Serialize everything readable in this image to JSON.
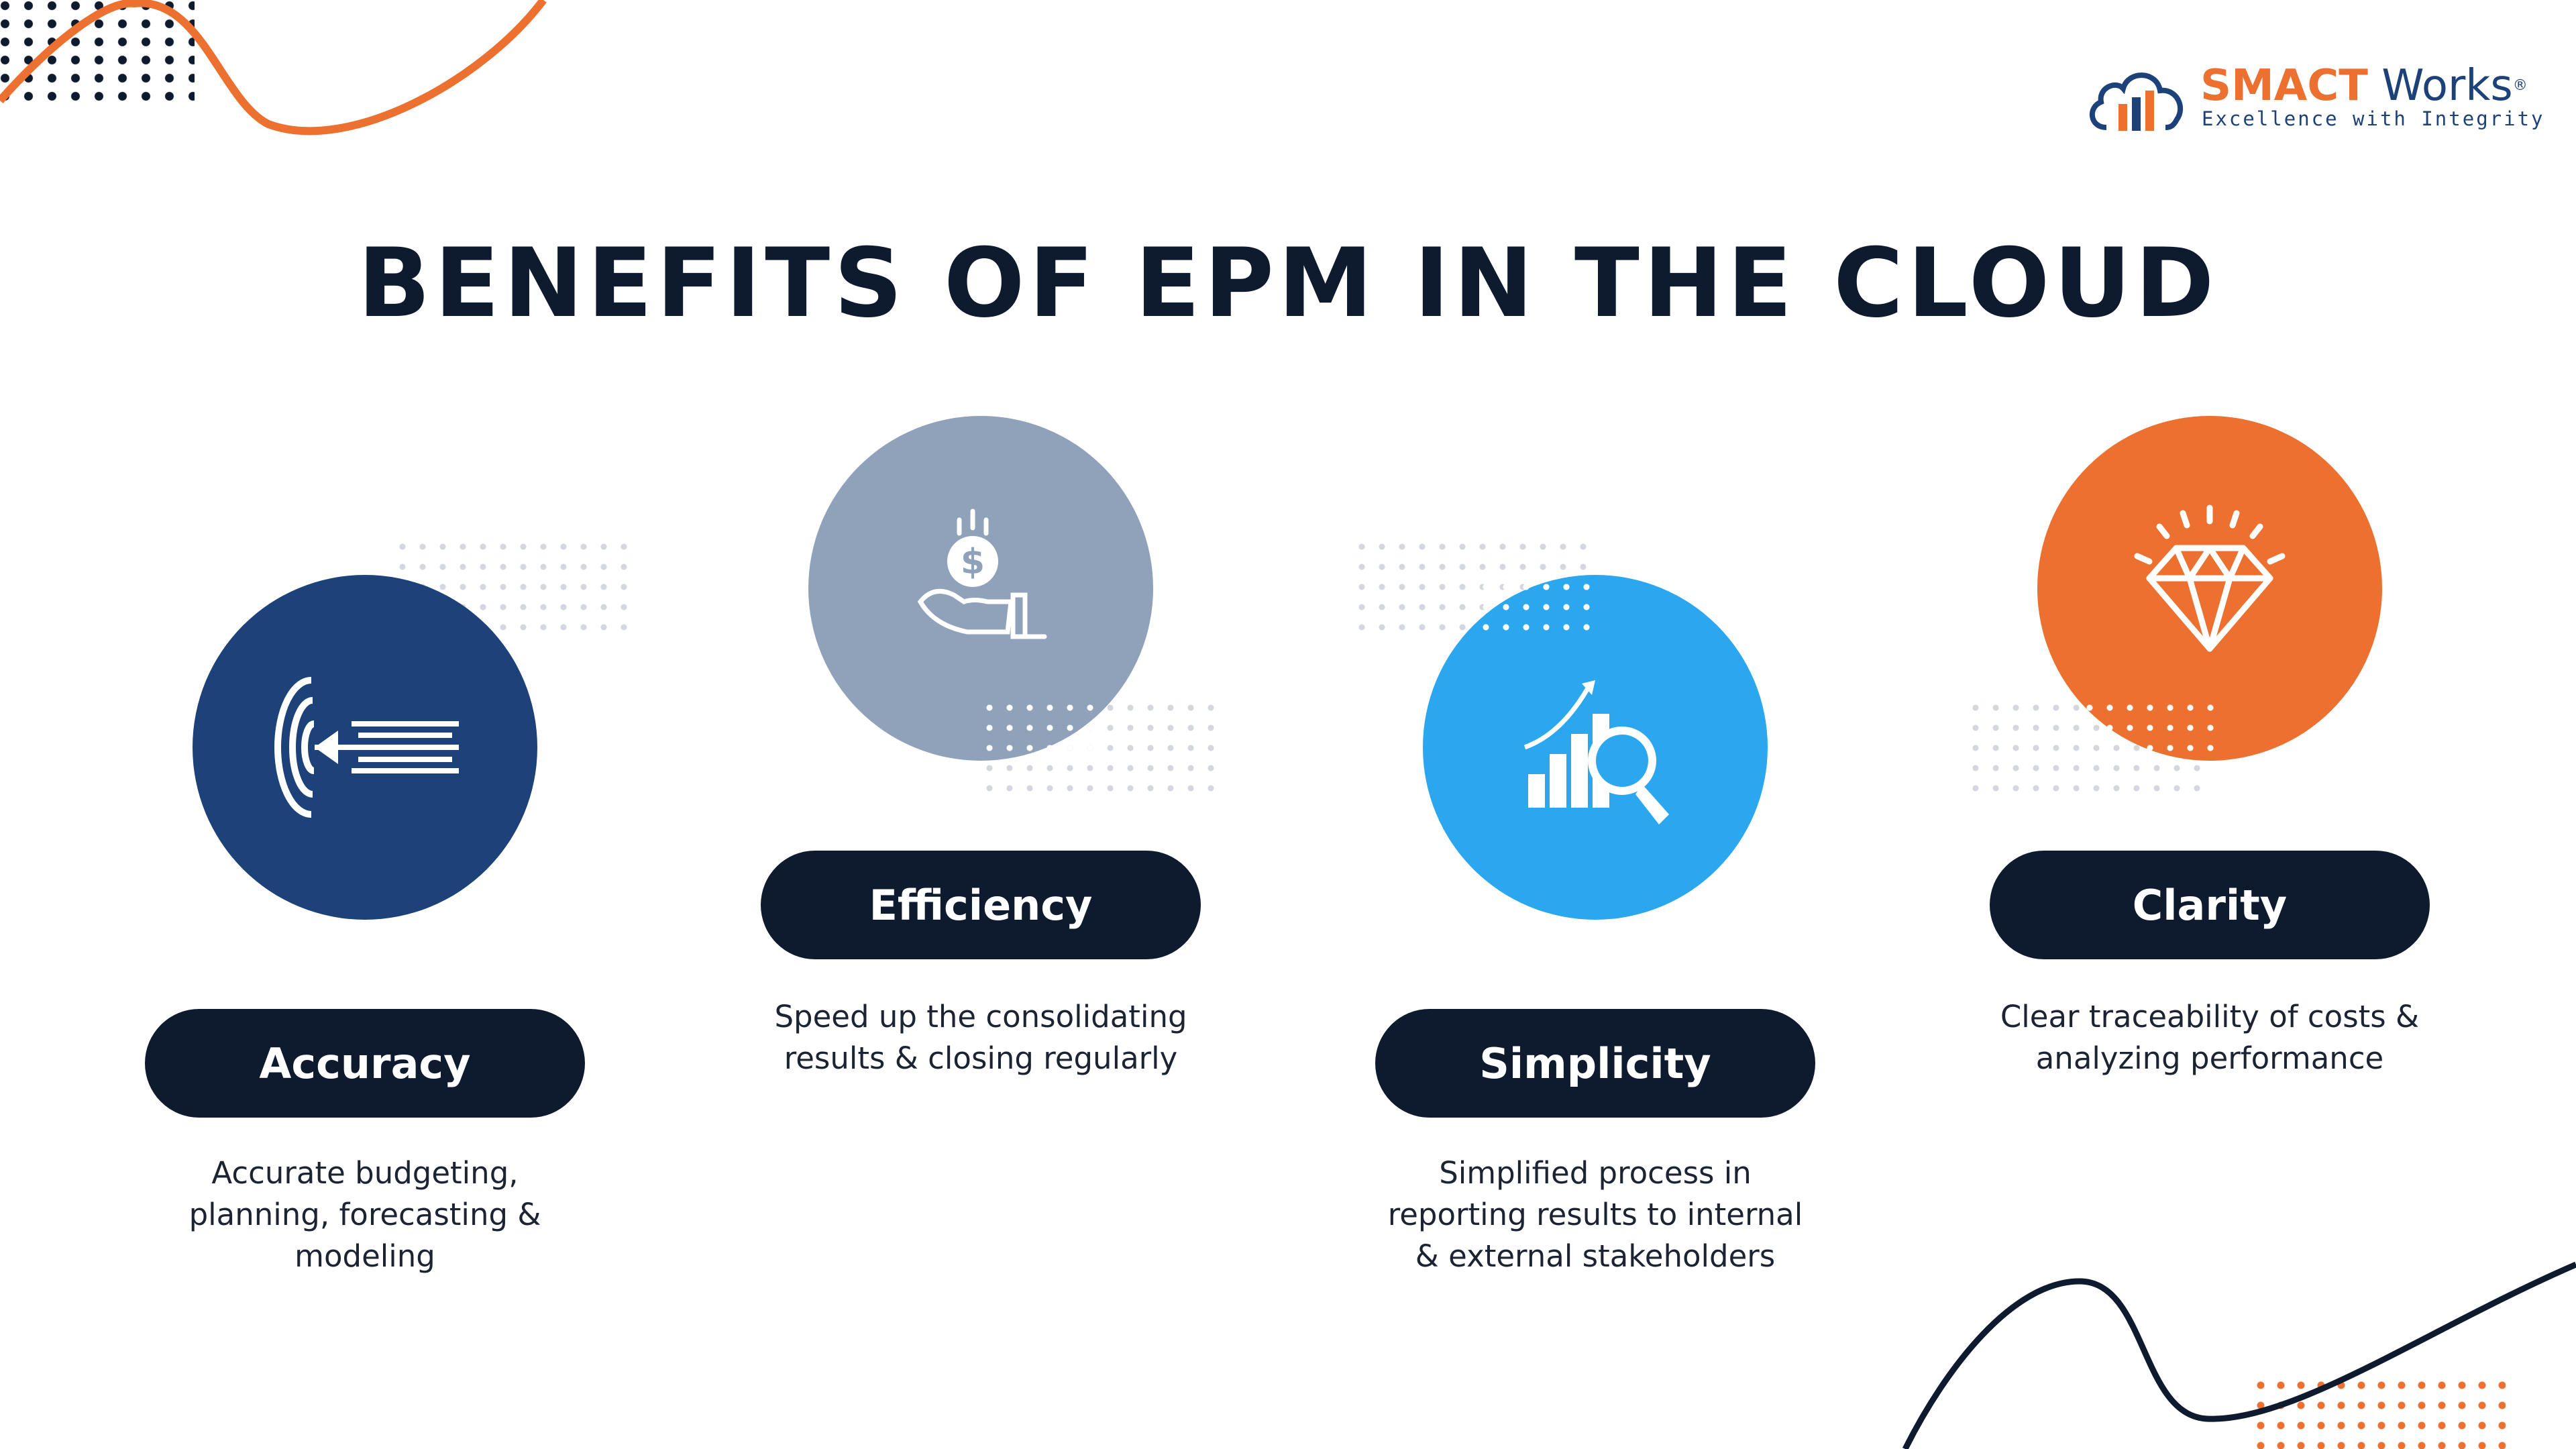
{
  "logo": {
    "brand_primary": "SMACT",
    "brand_secondary": "Works",
    "registered": "®",
    "tagline": "Excellence with Integrity"
  },
  "title": "BENEFITS OF EPM IN THE CLOUD",
  "colors": {
    "navy": "#0e1a2e",
    "orange": "#ec7030",
    "accuracy": "#1d4179",
    "efficiency": "#8fa2ba",
    "simplicity": "#2aa7ef",
    "clarity": "#ec7030"
  },
  "benefits": [
    {
      "label": "Accuracy",
      "icon": "target-arrow-icon",
      "description": [
        "Accurate budgeting,",
        "planning, forecasting &",
        "modeling"
      ]
    },
    {
      "label": "Efficiency",
      "icon": "hand-coin-icon",
      "description": [
        "Speed up the consolidating",
        "results & closing regularly"
      ]
    },
    {
      "label": "Simplicity",
      "icon": "chart-magnifier-icon",
      "description": [
        "Simplified process in",
        "reporting results to internal",
        "& external stakeholders"
      ]
    },
    {
      "label": "Clarity",
      "icon": "diamond-icon",
      "description": [
        "Clear traceability of costs &",
        "analyzing performance"
      ]
    }
  ]
}
